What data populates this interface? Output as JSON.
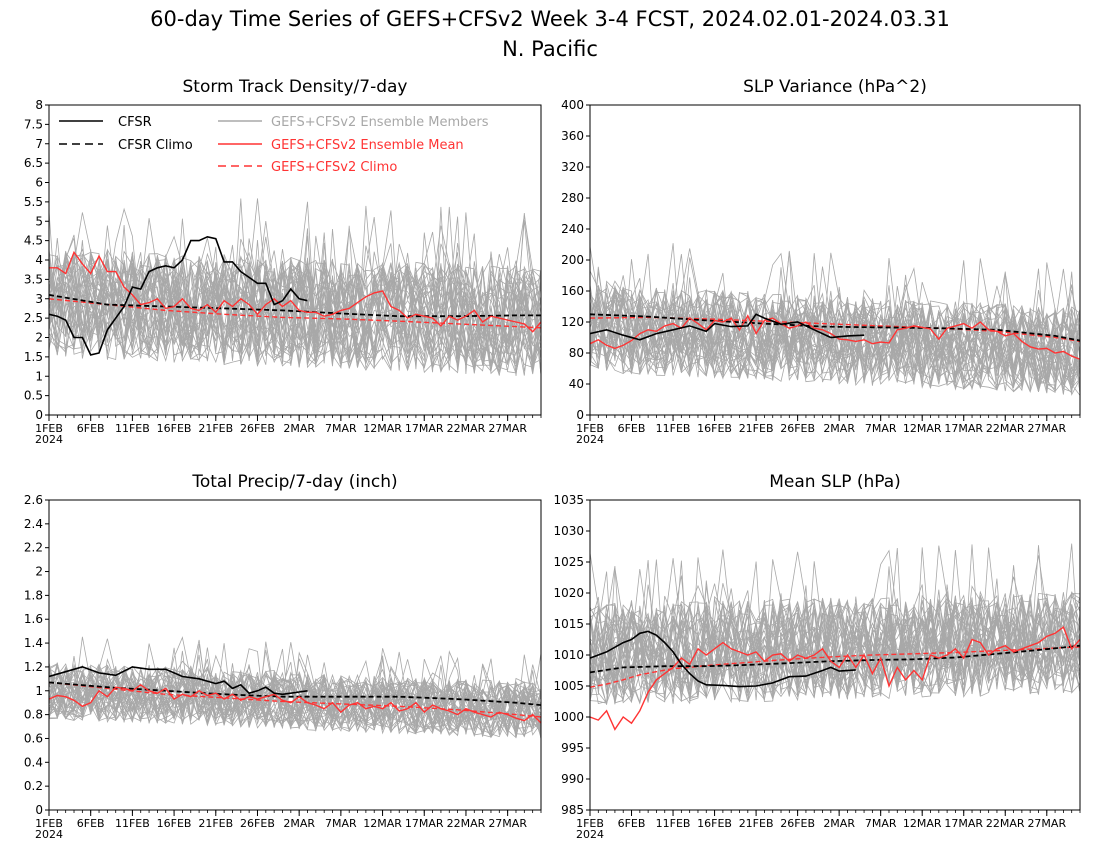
{
  "figure": {
    "title_line1": "60-day Time Series of GEFS+CFSv2 Week 3-4 FCST, 2024.02.01-2024.03.31",
    "title_line2": "N. Pacific"
  },
  "legend": {
    "cfsr": "CFSR",
    "cfsr_climo": "CFSR Climo",
    "members": "GEFS+CFSv2 Ensemble Members",
    "mean": "GEFS+CFSv2 Ensemble Mean",
    "climo": "GEFS+CFSv2 Climo"
  },
  "colors": {
    "cfsr": "#000000",
    "members": "#a8a8a8",
    "mean": "#ff3333",
    "axes": "#000000"
  },
  "x_axis": {
    "day_range": [
      1,
      60
    ],
    "tick_labels": [
      "1FEB",
      "6FEB",
      "11FEB",
      "16FEB",
      "21FEB",
      "26FEB",
      "2MAR",
      "7MAR",
      "12MAR",
      "17MAR",
      "22MAR",
      "27MAR"
    ],
    "tick_days": [
      1,
      6,
      11,
      16,
      21,
      26,
      31,
      36,
      41,
      46,
      51,
      56
    ],
    "year_label": "2024"
  },
  "chart_data": [
    {
      "type": "line",
      "title": "Storm Track Density/7-day",
      "ylim": [
        0,
        8
      ],
      "yticks": [
        "0",
        "0.5",
        "1",
        "1.5",
        "2",
        "2.5",
        "3",
        "3.5",
        "4",
        "4.5",
        "5",
        "5.5",
        "6",
        "6.5",
        "7",
        "7.5",
        "8"
      ],
      "ytick_values": [
        0,
        0.5,
        1,
        1.5,
        2,
        2.5,
        3,
        3.5,
        4,
        4.5,
        5,
        5.5,
        6,
        6.5,
        7,
        7.5,
        8
      ],
      "show_legend": true,
      "members": {
        "center": 2.9,
        "spread": 0.95,
        "end": 2.4
      },
      "cfsr": {
        "day": [
          1,
          2,
          3,
          4,
          5,
          6,
          7,
          8,
          9,
          10,
          11,
          12,
          13,
          14,
          15,
          16,
          17,
          18,
          19,
          20,
          21,
          22,
          23,
          24,
          25,
          26,
          27,
          28,
          29,
          30,
          31,
          32
        ],
        "value": [
          2.6,
          2.55,
          2.45,
          2.0,
          2.0,
          1.55,
          1.6,
          2.2,
          2.5,
          2.8,
          3.3,
          3.25,
          3.7,
          3.8,
          3.85,
          3.8,
          4.0,
          4.5,
          4.5,
          4.6,
          4.55,
          3.95,
          3.95,
          3.7,
          3.55,
          3.4,
          3.4,
          2.85,
          2.95,
          3.25,
          3.0,
          2.95
        ]
      },
      "cfsr_climo": {
        "day": [
          1,
          8,
          15,
          22,
          29,
          36,
          43,
          50,
          57,
          60
        ],
        "value": [
          3.1,
          2.85,
          2.8,
          2.75,
          2.7,
          2.62,
          2.55,
          2.55,
          2.57,
          2.57
        ]
      },
      "ens_mean": {
        "day": [
          1,
          2,
          3,
          4,
          5,
          6,
          7,
          8,
          9,
          10,
          11,
          12,
          13,
          14,
          15,
          16,
          17,
          18,
          19,
          20,
          21,
          22,
          23,
          24,
          25,
          26,
          27,
          28,
          29,
          30,
          31,
          32,
          33,
          34,
          35,
          36,
          37,
          38,
          39,
          40,
          41,
          42,
          43,
          44,
          45,
          46,
          47,
          48,
          49,
          50,
          51,
          52,
          53,
          54,
          55,
          56,
          57,
          58,
          59,
          60
        ],
        "value": [
          3.8,
          3.8,
          3.65,
          4.2,
          3.9,
          3.65,
          4.1,
          3.7,
          3.7,
          3.3,
          3.1,
          2.85,
          2.9,
          3.0,
          2.75,
          2.8,
          3.0,
          2.75,
          2.7,
          2.85,
          2.65,
          2.95,
          2.8,
          3.0,
          2.85,
          2.6,
          2.85,
          3.0,
          2.8,
          2.95,
          2.7,
          2.65,
          2.65,
          2.55,
          2.6,
          2.7,
          2.75,
          2.9,
          3.05,
          3.15,
          3.2,
          2.8,
          2.7,
          2.5,
          2.6,
          2.55,
          2.5,
          2.3,
          2.55,
          2.45,
          2.55,
          2.7,
          2.4,
          2.55,
          2.5,
          2.45,
          2.4,
          2.35,
          2.15,
          2.4
        ]
      },
      "ens_climo": {
        "day": [
          1,
          8,
          15,
          22,
          29,
          36,
          43,
          50,
          57,
          60
        ],
        "value": [
          3.0,
          2.85,
          2.7,
          2.6,
          2.52,
          2.48,
          2.42,
          2.35,
          2.28,
          2.25
        ]
      }
    },
    {
      "type": "line",
      "title": "SLP Variance (hPa^2)",
      "ylim": [
        0,
        400
      ],
      "yticks": [
        "0",
        "40",
        "80",
        "120",
        "160",
        "200",
        "240",
        "280",
        "320",
        "360",
        "400"
      ],
      "ytick_values": [
        0,
        40,
        80,
        120,
        160,
        200,
        240,
        280,
        320,
        360,
        400
      ],
      "show_legend": false,
      "members": {
        "center": 112,
        "spread": 38,
        "end": 82
      },
      "cfsr": {
        "day": [
          1,
          3,
          5,
          7,
          9,
          11,
          13,
          15,
          16,
          18,
          20,
          21,
          22,
          24,
          26,
          28,
          30,
          32,
          34
        ],
        "value": [
          105,
          110,
          103,
          97,
          105,
          110,
          115,
          108,
          118,
          114,
          115,
          130,
          125,
          117,
          120,
          110,
          100,
          102,
          103
        ]
      },
      "cfsr_climo": {
        "day": [
          1,
          8,
          15,
          22,
          29,
          36,
          43,
          50,
          57,
          60
        ],
        "value": [
          130,
          127,
          122,
          118,
          114,
          113,
          112,
          110,
          102,
          96
        ]
      },
      "ens_mean": {
        "day": [
          1,
          2,
          3,
          4,
          5,
          6,
          7,
          8,
          9,
          10,
          11,
          12,
          13,
          14,
          15,
          16,
          17,
          18,
          19,
          20,
          21,
          22,
          23,
          24,
          25,
          26,
          27,
          28,
          29,
          30,
          31,
          32,
          33,
          34,
          35,
          36,
          37,
          38,
          39,
          40,
          41,
          42,
          43,
          44,
          45,
          46,
          47,
          48,
          49,
          50,
          51,
          52,
          53,
          54,
          55,
          56,
          57,
          58,
          59,
          60
        ],
        "value": [
          92,
          97,
          90,
          86,
          90,
          96,
          105,
          110,
          108,
          115,
          118,
          112,
          125,
          118,
          110,
          122,
          120,
          125,
          110,
          128,
          105,
          122,
          125,
          118,
          112,
          115,
          120,
          112,
          110,
          105,
          98,
          97,
          95,
          97,
          92,
          94,
          93,
          110,
          112,
          115,
          113,
          111,
          98,
          112,
          115,
          118,
          112,
          120,
          110,
          108,
          102,
          105,
          95,
          88,
          85,
          86,
          80,
          82,
          76,
          72
        ]
      },
      "ens_climo": {
        "day": [
          1,
          8,
          15,
          22,
          29,
          36,
          43,
          50,
          57,
          60
        ],
        "value": [
          125,
          126,
          124,
          121,
          118,
          115,
          112,
          108,
          100,
          95
        ]
      }
    },
    {
      "type": "line",
      "title": "Total Precip/7-day (inch)",
      "ylim": [
        0,
        2.6
      ],
      "yticks": [
        "0",
        "0.2",
        "0.4",
        "0.6",
        "0.8",
        "1",
        "1.2",
        "1.4",
        "1.6",
        "1.8",
        "2",
        "2.2",
        "2.4",
        "2.6"
      ],
      "ytick_values": [
        0,
        0.2,
        0.4,
        0.6,
        0.8,
        1,
        1.2,
        1.4,
        1.6,
        1.8,
        2,
        2.2,
        2.4,
        2.6
      ],
      "show_legend": false,
      "members": {
        "center": 1.0,
        "spread": 0.16,
        "end": 0.83
      },
      "cfsr": {
        "day": [
          1,
          3,
          5,
          7,
          9,
          11,
          13,
          15,
          17,
          19,
          21,
          22,
          23,
          24,
          25,
          26,
          27,
          28,
          29,
          30,
          31,
          32
        ],
        "value": [
          1.12,
          1.16,
          1.2,
          1.15,
          1.13,
          1.2,
          1.18,
          1.18,
          1.12,
          1.1,
          1.06,
          1.08,
          1.02,
          1.05,
          0.98,
          1.0,
          1.03,
          0.98,
          0.97,
          0.98,
          0.99,
          1.0
        ]
      },
      "cfsr_climo": {
        "day": [
          1,
          8,
          15,
          22,
          29,
          36,
          43,
          50,
          57,
          60
        ],
        "value": [
          1.07,
          1.03,
          1.0,
          0.97,
          0.95,
          0.95,
          0.95,
          0.93,
          0.9,
          0.88
        ]
      },
      "ens_mean": {
        "day": [
          1,
          2,
          3,
          4,
          5,
          6,
          7,
          8,
          9,
          10,
          11,
          12,
          13,
          14,
          15,
          16,
          17,
          18,
          19,
          20,
          21,
          22,
          23,
          24,
          25,
          26,
          27,
          28,
          29,
          30,
          31,
          32,
          33,
          34,
          35,
          36,
          37,
          38,
          39,
          40,
          41,
          42,
          43,
          44,
          45,
          46,
          47,
          48,
          49,
          50,
          51,
          52,
          53,
          54,
          55,
          56,
          57,
          58,
          59,
          60
        ],
        "value": [
          0.93,
          0.96,
          0.95,
          0.92,
          0.87,
          0.9,
          1.0,
          0.95,
          1.03,
          1.02,
          1.0,
          1.05,
          1.0,
          0.98,
          1.02,
          0.93,
          0.97,
          0.95,
          1.0,
          0.96,
          0.98,
          0.93,
          0.97,
          0.92,
          0.95,
          0.93,
          0.95,
          0.97,
          0.92,
          0.9,
          0.95,
          0.9,
          0.88,
          0.85,
          0.9,
          0.82,
          0.88,
          0.9,
          0.85,
          0.87,
          0.85,
          0.9,
          0.83,
          0.85,
          0.9,
          0.82,
          0.88,
          0.85,
          0.83,
          0.8,
          0.85,
          0.82,
          0.8,
          0.78,
          0.82,
          0.8,
          0.77,
          0.75,
          0.8,
          0.73
        ]
      },
      "ens_climo": {
        "day": [
          1,
          8,
          15,
          22,
          29,
          36,
          43,
          50,
          57,
          60
        ],
        "value": [
          1.07,
          1.02,
          0.97,
          0.94,
          0.91,
          0.89,
          0.87,
          0.84,
          0.8,
          0.78
        ]
      }
    },
    {
      "type": "line",
      "title": "Mean SLP (hPa)",
      "ylim": [
        985,
        1035
      ],
      "yticks": [
        "985",
        "990",
        "995",
        "1000",
        "1005",
        "1010",
        "1015",
        "1020",
        "1025",
        "1030",
        "1035"
      ],
      "ytick_values": [
        985,
        990,
        995,
        1000,
        1005,
        1010,
        1015,
        1020,
        1025,
        1030,
        1035
      ],
      "show_legend": false,
      "members": {
        "center": 1010,
        "spread": 5.5,
        "end": 1012
      },
      "cfsr": {
        "day": [
          1,
          3,
          5,
          6,
          7,
          8,
          9,
          10,
          11,
          12,
          13,
          14,
          15,
          17,
          19,
          21,
          23,
          25,
          27,
          29,
          30,
          31,
          33
        ],
        "value": [
          1009.5,
          1010.5,
          1012,
          1012.5,
          1013.5,
          1013.8,
          1013.2,
          1012,
          1010.5,
          1008.5,
          1007,
          1005.8,
          1005.2,
          1005.1,
          1004.9,
          1005,
          1005.5,
          1006.5,
          1006.6,
          1007.5,
          1008,
          1007.4,
          1007.6
        ]
      },
      "cfsr_climo": {
        "day": [
          1,
          5,
          10,
          15,
          20,
          25,
          30,
          35,
          40,
          45,
          50,
          55,
          60
        ],
        "value": [
          1007.2,
          1008,
          1008.2,
          1008.2,
          1008.4,
          1008.7,
          1009,
          1009.2,
          1009.3,
          1009.6,
          1010.2,
          1010.8,
          1011.5
        ]
      },
      "ens_mean": {
        "day": [
          1,
          2,
          3,
          4,
          5,
          6,
          7,
          8,
          9,
          10,
          11,
          12,
          13,
          14,
          15,
          16,
          17,
          18,
          19,
          20,
          21,
          22,
          23,
          24,
          25,
          26,
          27,
          28,
          29,
          30,
          31,
          32,
          33,
          34,
          35,
          36,
          37,
          38,
          39,
          40,
          41,
          42,
          43,
          44,
          45,
          46,
          47,
          48,
          49,
          50,
          51,
          52,
          53,
          54,
          55,
          56,
          57,
          58,
          59,
          60
        ],
        "value": [
          1000,
          999.5,
          1001,
          998,
          1000,
          999,
          1001,
          1004,
          1006,
          1007,
          1008,
          1009.5,
          1008.5,
          1011,
          1010,
          1011,
          1012,
          1011,
          1010.5,
          1010,
          1010.5,
          1009,
          1010,
          1010.2,
          1009,
          1010,
          1009.5,
          1010,
          1011,
          1009,
          1008,
          1010,
          1008,
          1010,
          1007,
          1009.5,
          1005,
          1008,
          1006,
          1007.5,
          1006,
          1010,
          1009.5,
          1010,
          1011,
          1009.5,
          1012.5,
          1012,
          1010,
          1011,
          1011.5,
          1010.5,
          1011,
          1011.5,
          1012,
          1013,
          1013.5,
          1014.5,
          1011,
          1012.5
        ]
      },
      "ens_climo": {
        "day": [
          1,
          3,
          5,
          7,
          9,
          11,
          13,
          15,
          20,
          25,
          30,
          35,
          40,
          45,
          50,
          55,
          60
        ],
        "value": [
          1004.8,
          1005.3,
          1006,
          1006.8,
          1007.3,
          1007.8,
          1008,
          1008.3,
          1008.8,
          1009.3,
          1009.7,
          1010,
          1010.2,
          1010.4,
          1010.7,
          1011,
          1011.3
        ]
      }
    }
  ]
}
